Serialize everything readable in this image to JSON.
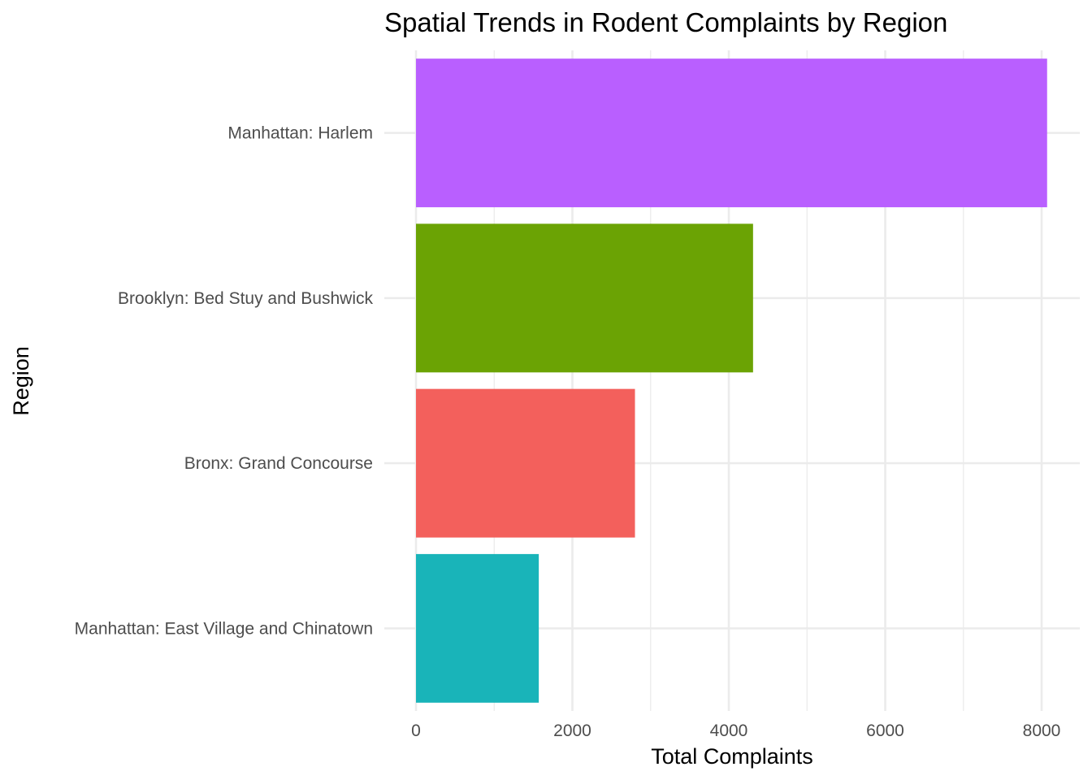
{
  "chart_data": {
    "type": "bar",
    "orientation": "horizontal",
    "title": "Spatial Trends in Rodent Complaints by Region",
    "xlabel": "Total Complaints",
    "ylabel": "Region",
    "categories": [
      "Manhattan: Harlem",
      "Brooklyn: Bed Stuy and Bushwick",
      "Bronx: Grand Concourse",
      "Manhattan: East Village and Chinatown"
    ],
    "values": [
      8070,
      4310,
      2800,
      1570
    ],
    "colors": [
      "#B95FFF",
      "#6BA304",
      "#F3605C",
      "#19B4B9"
    ],
    "xlim": [
      0,
      8500
    ],
    "xticks": [
      0,
      2000,
      4000,
      6000,
      8000
    ],
    "grid": true,
    "legend": "none"
  }
}
